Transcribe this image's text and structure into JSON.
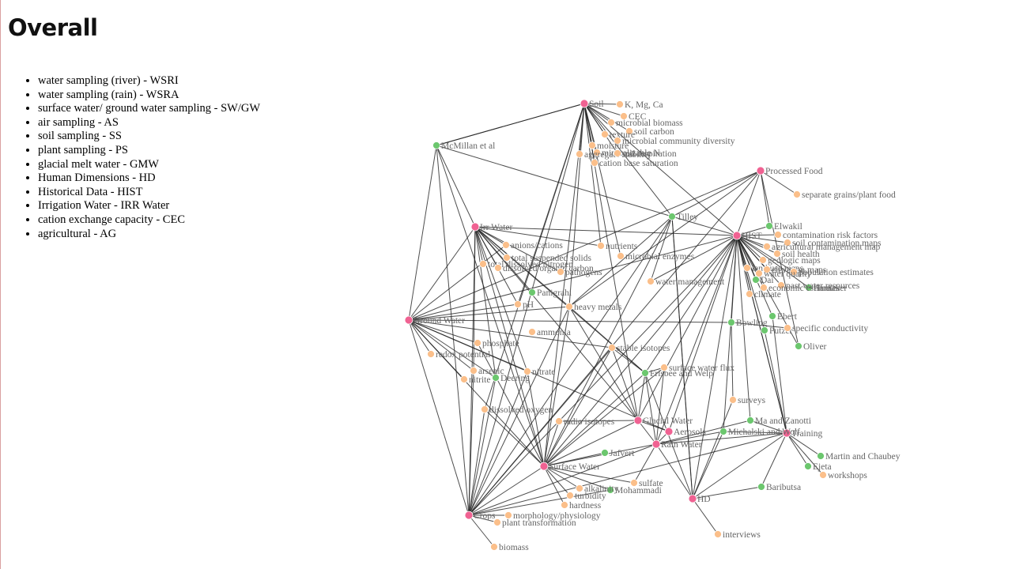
{
  "page": {
    "title": "Overall",
    "abbreviations": [
      "water sampling (river) - WSRI",
      "water sampling (rain) - WSRA",
      "surface water/ ground water sampling - SW/GW",
      "air sampling - AS",
      "soil sampling - SS",
      "plant sampling - PS",
      "glacial melt water - GMW",
      "Human Dimensions - HD",
      "Historical Data - HIST",
      "Irrigation Water - IRR Water",
      "cation exchange capacity - CEC",
      "agricultural - AG"
    ]
  },
  "colors": {
    "category": "#f06292",
    "paper": "#6cc76e",
    "parameter": "#fbbf8a",
    "edge": "#222222",
    "label": "#666666"
  },
  "graph": {
    "nodes": [
      {
        "id": "soil",
        "label": "Soil",
        "kind": "category"
      },
      {
        "id": "irr",
        "label": "Irr Water",
        "kind": "category"
      },
      {
        "id": "gw",
        "label": "Ground Water",
        "kind": "category"
      },
      {
        "id": "sw",
        "label": "Surface Water",
        "kind": "category"
      },
      {
        "id": "crops",
        "label": "Crops",
        "kind": "category"
      },
      {
        "id": "hist",
        "label": "HIST",
        "kind": "category"
      },
      {
        "id": "pf",
        "label": "Processed Food",
        "kind": "category"
      },
      {
        "id": "gmw",
        "label": "Glacial Water",
        "kind": "category"
      },
      {
        "id": "aerosol",
        "label": "Aerosols",
        "kind": "category"
      },
      {
        "id": "rain",
        "label": "Rain Water",
        "kind": "category"
      },
      {
        "id": "hd",
        "label": "HD",
        "kind": "category"
      },
      {
        "id": "training",
        "label": "Training",
        "kind": "category"
      },
      {
        "id": "mcm",
        "label": "McMillan et al",
        "kind": "paper"
      },
      {
        "id": "tilley",
        "label": "Tilley",
        "kind": "paper"
      },
      {
        "id": "elwakil",
        "label": "Elwakil",
        "kind": "paper"
      },
      {
        "id": "panigrahi",
        "label": "Panigrahi",
        "kind": "paper"
      },
      {
        "id": "deering",
        "label": "Deering",
        "kind": "paper"
      },
      {
        "id": "frisbee",
        "label": "Frisbee and Welp",
        "kind": "paper"
      },
      {
        "id": "bowling",
        "label": "Bowling",
        "kind": "paper"
      },
      {
        "id": "ebert",
        "label": "Ebert",
        "kind": "paper"
      },
      {
        "id": "putzer",
        "label": "Putzer",
        "kind": "paper"
      },
      {
        "id": "oliver",
        "label": "Oliver",
        "kind": "paper"
      },
      {
        "id": "mazanotti",
        "label": "Ma and Zanotti",
        "kind": "paper"
      },
      {
        "id": "michalski",
        "label": "Michalski and Wolf",
        "kind": "paper"
      },
      {
        "id": "jafvert",
        "label": "Jafvert",
        "kind": "paper"
      },
      {
        "id": "mohammadi",
        "label": "Mohammadi",
        "kind": "paper"
      },
      {
        "id": "baributsa",
        "label": "Baributsa",
        "kind": "paper"
      },
      {
        "id": "martin",
        "label": "Martin and Chaubey",
        "kind": "paper"
      },
      {
        "id": "ejeta",
        "label": "Ejeta",
        "kind": "paper"
      },
      {
        "id": "hamaker",
        "label": "Hamaker",
        "kind": "paper"
      },
      {
        "id": "dai",
        "label": "Dai",
        "kind": "paper"
      },
      {
        "id": "kmgca",
        "label": "K, Mg, Ca",
        "kind": "parameter"
      },
      {
        "id": "cec",
        "label": "CEC",
        "kind": "parameter"
      },
      {
        "id": "microbio",
        "label": "microbial biomass",
        "kind": "parameter"
      },
      {
        "id": "soilcarbon",
        "label": "soil carbon",
        "kind": "parameter"
      },
      {
        "id": "texture",
        "label": "texture",
        "kind": "parameter"
      },
      {
        "id": "microdiv",
        "label": "microbial community diversity",
        "kind": "parameter"
      },
      {
        "id": "moisture",
        "label": "moisture",
        "kind": "parameter"
      },
      {
        "id": "mineralN",
        "label": "mineralizable N",
        "kind": "parameter"
      },
      {
        "id": "aggstab",
        "label": "aggregate stability",
        "kind": "parameter"
      },
      {
        "id": "soilresp",
        "label": "soil respiration",
        "kind": "parameter"
      },
      {
        "id": "cationbase",
        "label": "cation base saturation",
        "kind": "parameter"
      },
      {
        "id": "sepgrain",
        "label": "separate grains/plant food",
        "kind": "parameter"
      },
      {
        "id": "contamrisk",
        "label": "contamination risk factors",
        "kind": "parameter"
      },
      {
        "id": "soilcontmap",
        "label": "soil contamination maps",
        "kind": "parameter"
      },
      {
        "id": "agmgmtmap",
        "label": "agricultural management map",
        "kind": "parameter"
      },
      {
        "id": "soilhealth",
        "label": "soil health",
        "kind": "parameter"
      },
      {
        "id": "geomap",
        "label": "geologic maps",
        "kind": "parameter"
      },
      {
        "id": "landuse",
        "label": "land use maps",
        "kind": "parameter"
      },
      {
        "id": "elevmaps",
        "label": "elevation maps",
        "kind": "parameter"
      },
      {
        "id": "popest",
        "label": "population estimates",
        "kind": "parameter"
      },
      {
        "id": "waterquality",
        "label": "water quality",
        "kind": "parameter"
      },
      {
        "id": "pastres",
        "label": "past water resources",
        "kind": "parameter"
      },
      {
        "id": "econest",
        "label": "economic estimates",
        "kind": "parameter"
      },
      {
        "id": "climate",
        "label": "climate",
        "kind": "parameter"
      },
      {
        "id": "watermgmt",
        "label": "water management",
        "kind": "parameter"
      },
      {
        "id": "anions",
        "label": "anions/cations",
        "kind": "parameter"
      },
      {
        "id": "tss",
        "label": "total suspended solids",
        "kind": "parameter"
      },
      {
        "id": "tdn",
        "label": "total dissolved nitrogen",
        "kind": "parameter"
      },
      {
        "id": "doc",
        "label": "dissolved organic carbon",
        "kind": "parameter"
      },
      {
        "id": "pathogens",
        "label": "pathogens",
        "kind": "parameter"
      },
      {
        "id": "nutrients",
        "label": "nutrients",
        "kind": "parameter"
      },
      {
        "id": "microenz",
        "label": "microbial enzymes",
        "kind": "parameter"
      },
      {
        "id": "ph",
        "label": "pH",
        "kind": "parameter"
      },
      {
        "id": "heavymetals",
        "label": "heavy metals",
        "kind": "parameter"
      },
      {
        "id": "ammonia",
        "label": "ammonia",
        "kind": "parameter"
      },
      {
        "id": "phosphate",
        "label": "phosphate",
        "kind": "parameter"
      },
      {
        "id": "redox",
        "label": "redox potential",
        "kind": "parameter"
      },
      {
        "id": "arsenic",
        "label": "arsenic",
        "kind": "parameter"
      },
      {
        "id": "nitrite",
        "label": "nitrite",
        "kind": "parameter"
      },
      {
        "id": "nitrate",
        "label": "nitrate",
        "kind": "parameter"
      },
      {
        "id": "stableiso",
        "label": "stable isotopes",
        "kind": "parameter"
      },
      {
        "id": "swflux",
        "label": "surface water flux",
        "kind": "parameter"
      },
      {
        "id": "specond",
        "label": "specific conductivity",
        "kind": "parameter"
      },
      {
        "id": "dissox",
        "label": "dissolved oxygen",
        "kind": "parameter"
      },
      {
        "id": "radioiso",
        "label": "radio isotopes",
        "kind": "parameter"
      },
      {
        "id": "surveys",
        "label": "surveys",
        "kind": "parameter"
      },
      {
        "id": "alkalinity",
        "label": "alkalinity",
        "kind": "parameter"
      },
      {
        "id": "turbidity",
        "label": "turbidity",
        "kind": "parameter"
      },
      {
        "id": "hardness",
        "label": "hardness",
        "kind": "parameter"
      },
      {
        "id": "sulfate",
        "label": "sulfate",
        "kind": "parameter"
      },
      {
        "id": "morph",
        "label": "morphology/physiology",
        "kind": "parameter"
      },
      {
        "id": "planttrans",
        "label": "plant transformation",
        "kind": "parameter"
      },
      {
        "id": "biomass",
        "label": "biomass",
        "kind": "parameter"
      },
      {
        "id": "interviews",
        "label": "interviews",
        "kind": "parameter"
      },
      {
        "id": "workshops",
        "label": "workshops",
        "kind": "parameter"
      }
    ],
    "edges": [
      [
        "soil",
        "kmgca"
      ],
      [
        "soil",
        "cec"
      ],
      [
        "soil",
        "microbio"
      ],
      [
        "soil",
        "soilcarbon"
      ],
      [
        "soil",
        "texture"
      ],
      [
        "soil",
        "microdiv"
      ],
      [
        "soil",
        "moisture"
      ],
      [
        "soil",
        "mineralN"
      ],
      [
        "soil",
        "aggstab"
      ],
      [
        "soil",
        "soilresp"
      ],
      [
        "soil",
        "cationbase"
      ],
      [
        "soil",
        "mcm"
      ],
      [
        "soil",
        "tilley"
      ],
      [
        "soil",
        "hist"
      ],
      [
        "soil",
        "nutrients"
      ],
      [
        "soil",
        "microenz"
      ],
      [
        "soil",
        "heavymetals"
      ],
      [
        "soil",
        "ph"
      ],
      [
        "soil",
        "crops"
      ],
      [
        "soil",
        "sw"
      ],
      [
        "soil",
        "gmw"
      ],
      [
        "soil",
        "dissox"
      ],
      [
        "mcm",
        "gw"
      ],
      [
        "mcm",
        "irr"
      ],
      [
        "mcm",
        "crops"
      ],
      [
        "mcm",
        "tilley"
      ],
      [
        "mcm",
        "sw"
      ],
      [
        "mcm",
        "soil"
      ],
      [
        "irr",
        "anions"
      ],
      [
        "irr",
        "tss"
      ],
      [
        "irr",
        "tdn"
      ],
      [
        "irr",
        "doc"
      ],
      [
        "irr",
        "pathogens"
      ],
      [
        "irr",
        "heavymetals"
      ],
      [
        "irr",
        "ph"
      ],
      [
        "irr",
        "panigrahi"
      ],
      [
        "irr",
        "crops"
      ],
      [
        "irr",
        "sw"
      ],
      [
        "irr",
        "gw"
      ],
      [
        "irr",
        "hist"
      ],
      [
        "irr",
        "nutrients"
      ],
      [
        "irr",
        "deering"
      ],
      [
        "irr",
        "nitrate"
      ],
      [
        "irr",
        "arsenic"
      ],
      [
        "irr",
        "frisbee"
      ],
      [
        "irr",
        "gmw"
      ],
      [
        "gw",
        "arsenic"
      ],
      [
        "gw",
        "nitrite"
      ],
      [
        "gw",
        "phosphate"
      ],
      [
        "gw",
        "redox"
      ],
      [
        "gw",
        "ph"
      ],
      [
        "gw",
        "heavymetals"
      ],
      [
        "gw",
        "crops"
      ],
      [
        "gw",
        "sw"
      ],
      [
        "gw",
        "deering"
      ],
      [
        "gw",
        "anions"
      ],
      [
        "gw",
        "hist"
      ],
      [
        "gw",
        "bowling"
      ],
      [
        "gw",
        "pf"
      ],
      [
        "gw",
        "aerosol"
      ],
      [
        "gw",
        "stableiso"
      ],
      [
        "gw",
        "nitrate"
      ],
      [
        "tilley",
        "hist"
      ],
      [
        "tilley",
        "pf"
      ],
      [
        "tilley",
        "watermgmt"
      ],
      [
        "tilley",
        "sw"
      ],
      [
        "tilley",
        "heavymetals"
      ],
      [
        "tilley",
        "crops"
      ],
      [
        "tilley",
        "hd"
      ],
      [
        "pf",
        "hist"
      ],
      [
        "pf",
        "sepgrain"
      ],
      [
        "pf",
        "oliver"
      ],
      [
        "pf",
        "heavymetals"
      ],
      [
        "pf",
        "crops"
      ],
      [
        "pf",
        "elwakil"
      ],
      [
        "hist",
        "elwakil"
      ],
      [
        "hist",
        "contamrisk"
      ],
      [
        "hist",
        "soilcontmap"
      ],
      [
        "hist",
        "agmgmtmap"
      ],
      [
        "hist",
        "soilhealth"
      ],
      [
        "hist",
        "geomap"
      ],
      [
        "hist",
        "landuse"
      ],
      [
        "hist",
        "elevmaps"
      ],
      [
        "hist",
        "popest"
      ],
      [
        "hist",
        "waterquality"
      ],
      [
        "hist",
        "pastres"
      ],
      [
        "hist",
        "econest"
      ],
      [
        "hist",
        "climate"
      ],
      [
        "hist",
        "watermgmt"
      ],
      [
        "hist",
        "hamaker"
      ],
      [
        "hist",
        "dai"
      ],
      [
        "hist",
        "ebert"
      ],
      [
        "hist",
        "putzer"
      ],
      [
        "hist",
        "oliver"
      ],
      [
        "hist",
        "bowling"
      ],
      [
        "hist",
        "sw"
      ],
      [
        "hist",
        "crops"
      ],
      [
        "hist",
        "rain"
      ],
      [
        "hist",
        "training"
      ],
      [
        "hist",
        "gmw"
      ],
      [
        "hist",
        "aerosol"
      ],
      [
        "hist",
        "hd"
      ],
      [
        "hist",
        "michalski"
      ],
      [
        "hist",
        "mazanotti"
      ],
      [
        "hist",
        "frisbee"
      ],
      [
        "sw",
        "alkalinity"
      ],
      [
        "sw",
        "turbidity"
      ],
      [
        "sw",
        "hardness"
      ],
      [
        "sw",
        "sulfate"
      ],
      [
        "sw",
        "radioiso"
      ],
      [
        "sw",
        "stableiso"
      ],
      [
        "sw",
        "swflux"
      ],
      [
        "sw",
        "frisbee"
      ],
      [
        "sw",
        "jafvert"
      ],
      [
        "sw",
        "mohammadi"
      ],
      [
        "sw",
        "gmw"
      ],
      [
        "sw",
        "rain"
      ],
      [
        "sw",
        "crops"
      ],
      [
        "sw",
        "heavymetals"
      ],
      [
        "sw",
        "nitrate"
      ],
      [
        "sw",
        "dissox"
      ],
      [
        "sw",
        "phosphate"
      ],
      [
        "crops",
        "morph"
      ],
      [
        "crops",
        "planttrans"
      ],
      [
        "crops",
        "biomass"
      ],
      [
        "crops",
        "heavymetals"
      ],
      [
        "crops",
        "arsenic"
      ],
      [
        "crops",
        "deering"
      ],
      [
        "crops",
        "mohammadi"
      ],
      [
        "crops",
        "rain"
      ],
      [
        "crops",
        "training"
      ],
      [
        "crops",
        "dissox"
      ],
      [
        "crops",
        "nitrate"
      ],
      [
        "crops",
        "stableiso"
      ],
      [
        "gmw",
        "aerosol"
      ],
      [
        "gmw",
        "rain"
      ],
      [
        "gmw",
        "radioiso"
      ],
      [
        "gmw",
        "stableiso"
      ],
      [
        "gmw",
        "frisbee"
      ],
      [
        "gmw",
        "heavymetals"
      ],
      [
        "rain",
        "aerosol"
      ],
      [
        "rain",
        "michalski"
      ],
      [
        "rain",
        "mazanotti"
      ],
      [
        "rain",
        "training"
      ],
      [
        "rain",
        "hd"
      ],
      [
        "rain",
        "sulfate"
      ],
      [
        "rain",
        "frisbee"
      ],
      [
        "rain",
        "swflux"
      ],
      [
        "hd",
        "surveys"
      ],
      [
        "hd",
        "interviews"
      ],
      [
        "hd",
        "training"
      ],
      [
        "hd",
        "michalski"
      ],
      [
        "hd",
        "baributsa"
      ],
      [
        "hd",
        "tilley"
      ],
      [
        "hd",
        "frisbee"
      ],
      [
        "training",
        "workshops"
      ],
      [
        "training",
        "martin"
      ],
      [
        "training",
        "ejeta"
      ],
      [
        "training",
        "baributsa"
      ],
      [
        "training",
        "michalski"
      ],
      [
        "training",
        "mazanotti"
      ],
      [
        "training",
        "putzer"
      ],
      [
        "training",
        "ebert"
      ],
      [
        "training",
        "hist"
      ],
      [
        "frisbee",
        "swflux"
      ],
      [
        "frisbee",
        "stableiso"
      ],
      [
        "frisbee",
        "heavymetals"
      ],
      [
        "bowling",
        "specond"
      ],
      [
        "bowling",
        "surveys"
      ]
    ]
  }
}
